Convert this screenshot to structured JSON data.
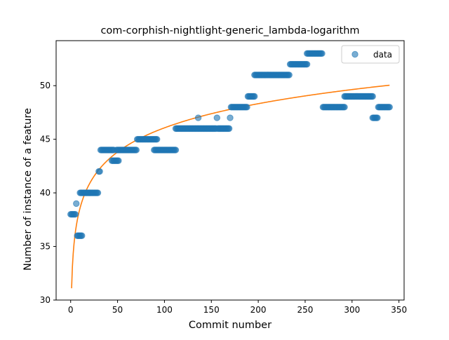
{
  "chart_data": {
    "type": "scatter",
    "title": "com-corphish-nightlight-generic_lambda-logarithm",
    "xlabel": "Commit number",
    "ylabel": "Number of instance of a feature",
    "xlim": [
      -15.5,
      355.5
    ],
    "ylim": [
      30,
      54.2
    ],
    "x_ticks": [
      0,
      50,
      100,
      150,
      200,
      250,
      300,
      350
    ],
    "y_ticks": [
      30,
      35,
      40,
      45,
      50
    ],
    "grid": false,
    "legend_position": "top-right",
    "colors": {
      "data": "#1f77b4",
      "fit": "#ff7f0e"
    },
    "series": [
      {
        "name": "data",
        "kind": "scatter",
        "segments": [
          {
            "x_from": 0,
            "x_to": 5,
            "y": 38
          },
          {
            "x_from": 6,
            "x_to": 6,
            "y": 39
          },
          {
            "x_from": 7,
            "x_to": 12,
            "y": 36
          },
          {
            "x_from": 10,
            "x_to": 29,
            "y": 40
          },
          {
            "x_from": 30,
            "x_to": 31,
            "y": 42
          },
          {
            "x_from": 32,
            "x_to": 46,
            "y": 44
          },
          {
            "x_from": 44,
            "x_to": 51,
            "y": 43
          },
          {
            "x_from": 49,
            "x_to": 70,
            "y": 44
          },
          {
            "x_from": 71,
            "x_to": 92,
            "y": 45
          },
          {
            "x_from": 89,
            "x_to": 112,
            "y": 44
          },
          {
            "x_from": 112,
            "x_to": 135,
            "y": 46
          },
          {
            "x_from": 136,
            "x_to": 136,
            "y": 47
          },
          {
            "x_from": 136,
            "x_to": 155,
            "y": 46
          },
          {
            "x_from": 156,
            "x_to": 156,
            "y": 47
          },
          {
            "x_from": 157,
            "x_to": 169,
            "y": 46
          },
          {
            "x_from": 170,
            "x_to": 170,
            "y": 47
          },
          {
            "x_from": 171,
            "x_to": 188,
            "y": 48
          },
          {
            "x_from": 189,
            "x_to": 196,
            "y": 49
          },
          {
            "x_from": 196,
            "x_to": 233,
            "y": 51
          },
          {
            "x_from": 234,
            "x_to": 252,
            "y": 52
          },
          {
            "x_from": 252,
            "x_to": 268,
            "y": 53
          },
          {
            "x_from": 269,
            "x_to": 292,
            "y": 48
          },
          {
            "x_from": 292,
            "x_to": 322,
            "y": 49
          },
          {
            "x_from": 322,
            "x_to": 327,
            "y": 47
          },
          {
            "x_from": 328,
            "x_to": 340,
            "y": 48
          }
        ]
      },
      {
        "kind": "line",
        "fit": {
          "a": 31.1,
          "b": 3.25,
          "x_from": 1,
          "x_to": 340
        }
      }
    ]
  }
}
